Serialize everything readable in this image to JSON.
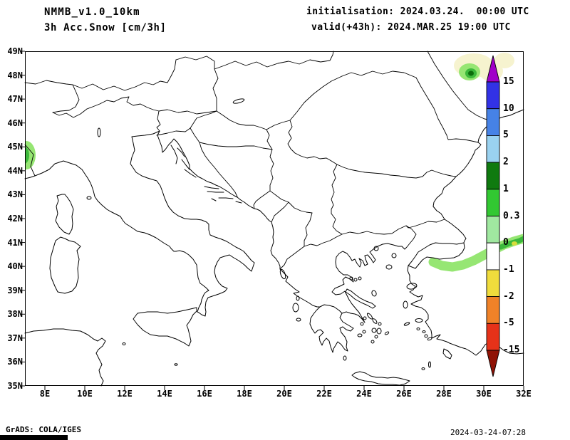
{
  "header": {
    "model_line": "NMMB_v1.0_10km",
    "field_line": "3h Acc.Snow [cm/3h]",
    "init_line": "initialisation: 2024.03.24.  00:00 UTC",
    "valid_line": "valid(+43h): 2024.MAR.25 19:00 UTC"
  },
  "map": {
    "lat_labels": [
      "49N",
      "48N",
      "47N",
      "46N",
      "45N",
      "44N",
      "43N",
      "42N",
      "41N",
      "40N",
      "39N",
      "38N",
      "37N",
      "36N",
      "35N"
    ],
    "lon_labels": [
      "8E",
      "10E",
      "12E",
      "14E",
      "16E",
      "18E",
      "20E",
      "22E",
      "24E",
      "26E",
      "28E",
      "30E",
      "32E"
    ],
    "patch_colors": {
      "trace": "#f6f3cf",
      "light": "#96e673",
      "medium": "#3cb93c",
      "dark": "#0c6e0c",
      "yellow": "#d7dc3c"
    }
  },
  "colorbar": {
    "tick_labels": [
      "15",
      "10",
      "5",
      "2",
      "1",
      "0.3",
      "0",
      "-1",
      "-2",
      "-5",
      "-15"
    ],
    "colors": [
      "#a000c8",
      "#3232e6",
      "#4682e6",
      "#9ad2f0",
      "#0f7a0f",
      "#32c832",
      "#a0e8a0",
      "#ffffff",
      "#f0dc3c",
      "#f08228",
      "#e63219",
      "#8f1205"
    ]
  },
  "footer": {
    "credit": "GrADS: COLA/IGES",
    "timestamp": "2024-03-24-07:28"
  }
}
